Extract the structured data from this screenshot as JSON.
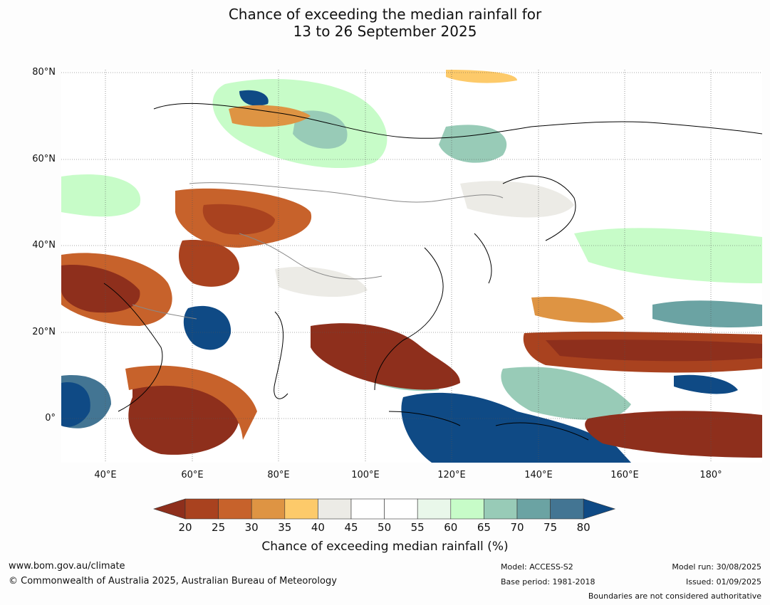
{
  "title_line1": "Chance of exceeding the median rainfall for",
  "title_line2": "13 to 26 September 2025",
  "lat_labels": [
    "80°N",
    "60°N",
    "40°N",
    "20°N",
    "0°"
  ],
  "lon_labels": [
    "40°E",
    "60°E",
    "80°E",
    "100°E",
    "120°E",
    "140°E",
    "160°E",
    "180°"
  ],
  "colorbar": {
    "ticks": [
      "20",
      "25",
      "30",
      "35",
      "40",
      "45",
      "50",
      "55",
      "60",
      "65",
      "70",
      "75",
      "80"
    ],
    "colors": [
      "#8e2f1c",
      "#a9421f",
      "#c7622b",
      "#de9443",
      "#fdca6a",
      "#ecebe6",
      "#ffffff",
      "#ffffff",
      "#e9f7ea",
      "#c7fcc8",
      "#98cbb7",
      "#6ba3a3",
      "#437593",
      "#0f4a85"
    ],
    "label": "Chance of exceeding median rainfall (%)"
  },
  "footer": {
    "url": "www.bom.gov.au/climate",
    "copyright": "© Commonwealth of Australia 2025, Australian Bureau of Meteorology",
    "model": "Model: ACCESS-S2",
    "base_period": "Base period: 1981-2018",
    "model_run": "Model run: 30/08/2025",
    "issued": "Issued: 01/09/2025",
    "boundaries": "Boundaries are not considered authoritative"
  }
}
